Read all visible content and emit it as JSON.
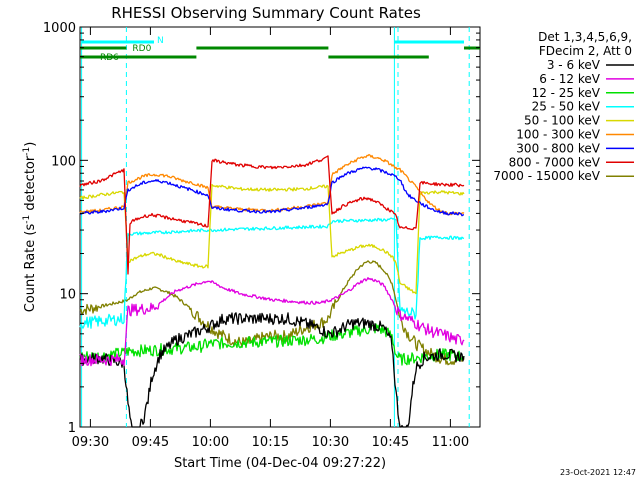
{
  "chart_data": {
    "type": "line",
    "title": "RHESSI Observing Summary Count Rates",
    "xlabel": "Start Time (04-Dec-04 09:27:22)",
    "ylabel_parts": [
      "Count Rate (s",
      "-1",
      " detector",
      "-1",
      ")"
    ],
    "x_unit": "minutes since 09:27:22",
    "xlim": [
      0,
      100
    ],
    "ylim": [
      1,
      1000
    ],
    "yscale": "log",
    "x_ticks": [
      {
        "label": "09:30",
        "t": 2.6
      },
      {
        "label": "09:45",
        "t": 17.6
      },
      {
        "label": "10:00",
        "t": 32.6
      },
      {
        "label": "10:15",
        "t": 47.6
      },
      {
        "label": "10:30",
        "t": 62.6
      },
      {
        "label": "10:45",
        "t": 77.6
      },
      {
        "label": "11:00",
        "t": 92.6
      }
    ],
    "y_ticks": [
      {
        "label": "1",
        "v": 1
      },
      {
        "label": "10",
        "v": 10
      },
      {
        "label": "100",
        "v": 100
      },
      {
        "label": "1000",
        "v": 1000
      }
    ],
    "legend_header": [
      "Det 1,3,4,5,6,9,",
      "FDecim 2, Att 0"
    ],
    "series": [
      {
        "name": "3 - 6 keV",
        "color": "#000000",
        "x": [
          0,
          5,
          11,
          12,
          13,
          14,
          15,
          16,
          17,
          18,
          20,
          24,
          28,
          32,
          36,
          40,
          44,
          48,
          52,
          56,
          60,
          62,
          64,
          68,
          72,
          76,
          78,
          79,
          80,
          81,
          82,
          83,
          84,
          86,
          88,
          90,
          92,
          94,
          96
        ],
        "y": [
          3.2,
          3.3,
          3.0,
          1.5,
          0.9,
          0.8,
          1.0,
          1.2,
          1.6,
          2.4,
          3.5,
          4.5,
          5.0,
          5.6,
          6.5,
          6.5,
          6.5,
          6.5,
          6.5,
          6.0,
          5.5,
          5.0,
          5.2,
          6.0,
          6.0,
          5.5,
          4.2,
          1.8,
          1.0,
          0.9,
          1.0,
          1.8,
          2.8,
          3.3,
          3.4,
          3.5,
          3.5,
          3.4,
          3.4
        ]
      },
      {
        "name": "6 - 12 keV",
        "color": "#e000e0",
        "x": [
          0,
          5,
          11,
          12,
          14,
          16,
          18,
          20,
          22,
          24,
          26,
          28,
          30,
          32,
          34,
          36,
          38,
          40,
          44,
          48,
          52,
          56,
          60,
          62,
          64,
          66,
          68,
          70,
          72,
          74,
          76,
          78,
          79,
          80,
          82,
          84,
          86,
          88,
          90,
          92,
          94,
          96
        ],
        "y": [
          3.2,
          3.2,
          3.2,
          7.5,
          7.6,
          7.7,
          7.8,
          8.5,
          9.5,
          10.5,
          11.0,
          11.5,
          12.0,
          12.5,
          11.8,
          11.0,
          10.5,
          10.0,
          9.5,
          9.0,
          8.8,
          8.6,
          8.5,
          8.8,
          9.3,
          10.0,
          11.0,
          12.2,
          13.0,
          12.5,
          11.5,
          9.0,
          7.8,
          7.0,
          6.5,
          6.0,
          5.5,
          5.2,
          5.0,
          4.8,
          4.5,
          4.5
        ]
      },
      {
        "name": "12 - 25 keV",
        "color": "#00e000",
        "x": [
          0,
          5,
          11,
          12,
          20,
          30,
          32,
          40,
          50,
          60,
          62,
          66,
          70,
          74,
          76,
          78,
          79,
          80,
          84,
          90,
          96
        ],
        "y": [
          3.4,
          3.4,
          3.6,
          3.7,
          3.8,
          4.0,
          4.2,
          4.3,
          4.4,
          4.6,
          4.8,
          5.0,
          5.3,
          5.5,
          5.3,
          4.8,
          3.5,
          3.2,
          3.3,
          3.5,
          3.4
        ]
      },
      {
        "name": "25 - 50 keV",
        "color": "#00ffff",
        "x": [
          0,
          5,
          11,
          12,
          32,
          33,
          48,
          62,
          63,
          79,
          80,
          84,
          85,
          90,
          96
        ],
        "y": [
          6.0,
          6.2,
          6.5,
          28,
          30,
          30,
          31,
          32,
          35,
          36,
          7.5,
          7.0,
          26,
          26.5,
          26
        ]
      },
      {
        "name": "50 - 100 keV",
        "color": "#d8d800",
        "x": [
          0,
          5,
          11,
          12,
          14,
          16,
          18,
          20,
          22,
          24,
          26,
          28,
          30,
          32,
          33,
          40,
          48,
          56,
          62,
          63,
          66,
          70,
          72,
          74,
          76,
          78,
          79,
          80,
          84,
          85,
          90,
          96
        ],
        "y": [
          52,
          55,
          58,
          17.5,
          18.5,
          19.5,
          20,
          19.5,
          18.5,
          17.5,
          17,
          16.5,
          16,
          16,
          65,
          61,
          60,
          61,
          64,
          19,
          20.5,
          22.5,
          23,
          22.5,
          21,
          19,
          17,
          12,
          10,
          57,
          58,
          56
        ]
      },
      {
        "name": "100 - 300 keV",
        "color": "#ff8800",
        "x": [
          0,
          5,
          11,
          12,
          14,
          16,
          18,
          20,
          22,
          24,
          26,
          28,
          30,
          32,
          33,
          40,
          48,
          56,
          62,
          63,
          66,
          70,
          72,
          74,
          76,
          78,
          79,
          80,
          82,
          84,
          86,
          88,
          90,
          92,
          94,
          96
        ],
        "y": [
          41,
          42,
          45,
          68,
          72,
          76,
          78,
          78,
          76,
          73,
          70,
          68,
          65,
          62,
          45,
          43,
          42,
          45,
          48,
          78,
          90,
          104,
          108,
          105,
          100,
          92,
          87,
          85,
          73,
          63,
          53,
          46,
          42,
          40,
          40,
          40
        ]
      },
      {
        "name": "300 - 800 keV",
        "color": "#0000ff",
        "x": [
          0,
          5,
          11,
          12,
          14,
          16,
          18,
          20,
          22,
          24,
          26,
          28,
          30,
          32,
          33,
          40,
          48,
          56,
          62,
          63,
          66,
          70,
          72,
          74,
          76,
          78,
          79,
          80,
          81,
          82,
          84,
          86,
          88,
          90,
          92,
          94,
          96
        ],
        "y": [
          40,
          41,
          44,
          60,
          64,
          68,
          70,
          70,
          68,
          65,
          62,
          60,
          57,
          55,
          44,
          42,
          41,
          44,
          47,
          68,
          78,
          86,
          88,
          86,
          82,
          78,
          75,
          72,
          62,
          55,
          50,
          46,
          43,
          41,
          40,
          40,
          39
        ]
      },
      {
        "name": "800 - 7000 keV",
        "color": "#e00000",
        "x": [
          0,
          5,
          11,
          12,
          12.5,
          14,
          16,
          18,
          20,
          22,
          24,
          26,
          28,
          30,
          32,
          33,
          40,
          48,
          56,
          62,
          63,
          66,
          70,
          72,
          74,
          76,
          78,
          79,
          80,
          84,
          85,
          90,
          96
        ],
        "y": [
          65,
          70,
          85,
          14,
          34,
          36,
          38,
          39,
          38,
          37,
          36,
          35,
          34,
          33,
          32,
          100,
          92,
          88,
          92,
          105,
          40,
          46,
          51,
          52,
          49,
          45,
          41,
          38,
          31,
          31,
          68,
          66,
          65
        ]
      },
      {
        "name": "7000 - 15000 keV",
        "color": "#808000",
        "x": [
          0,
          5,
          11,
          12,
          14,
          16,
          18,
          20,
          22,
          24,
          26,
          28,
          30,
          32,
          34,
          36,
          38,
          40,
          42,
          44,
          46,
          48,
          52,
          56,
          60,
          62,
          64,
          66,
          68,
          70,
          72,
          74,
          76,
          78,
          79,
          80,
          82,
          84,
          86,
          88,
          90,
          92,
          94,
          96
        ],
        "y": [
          7.5,
          8.0,
          8.8,
          9.0,
          10.0,
          10.5,
          11.0,
          10.8,
          10.2,
          9.5,
          8.5,
          7.5,
          6.5,
          5.8,
          5.2,
          4.8,
          4.5,
          4.3,
          4.3,
          4.5,
          4.7,
          4.8,
          4.8,
          5.5,
          6.0,
          6.5,
          8.5,
          11.0,
          13.5,
          16.0,
          17.5,
          17.0,
          15.0,
          12.0,
          9.0,
          6.5,
          5.0,
          4.2,
          3.8,
          3.5,
          3.3,
          3.2,
          3.2,
          3.2
        ]
      }
    ],
    "vlines": [
      {
        "t": 11.6,
        "style": "dashed",
        "color": "#00ffff"
      },
      {
        "t": 79.5,
        "style": "dashed",
        "color": "#00ffff"
      },
      {
        "t": 0.4,
        "style": "solid",
        "color": "#00ffff"
      },
      {
        "t": 78.6,
        "style": "solid",
        "color": "#00ffff"
      },
      {
        "t": 97.3,
        "style": "dashed",
        "color": "#00ffff"
      }
    ],
    "flag_bars": [
      {
        "label": "N",
        "color": "#00ffff",
        "segments": [
          [
            0.4,
            18.5
          ],
          [
            78.6,
            96.0
          ]
        ]
      },
      {
        "label": "RD0",
        "color": "#008800",
        "segments": [
          [
            0,
            11.6
          ],
          [
            29.1,
            62.1
          ],
          [
            96.0,
            100
          ]
        ]
      },
      {
        "label": "RD6",
        "color": "#008800",
        "segments": [
          [
            0,
            29.1
          ],
          [
            62.1,
            87.2
          ]
        ]
      }
    ]
  },
  "footer": {
    "timestamp": "23-Oct-2021 12:47"
  }
}
